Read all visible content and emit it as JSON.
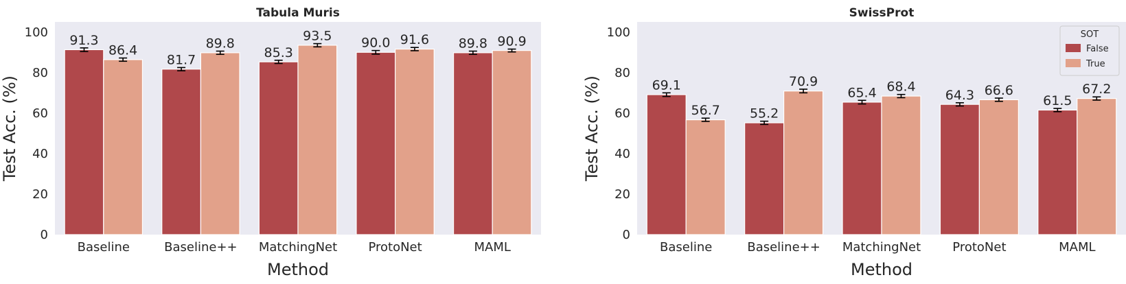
{
  "chart_data": [
    {
      "type": "bar",
      "title": "Tabula Muris",
      "xlabel": "Method",
      "ylabel": "Test Acc. (%)",
      "ylim": [
        0,
        105
      ],
      "yticks": [
        0,
        20,
        40,
        60,
        80,
        100
      ],
      "grid": false,
      "categories": [
        "Baseline",
        "Baseline++",
        "MatchingNet",
        "ProtoNet",
        "MAML"
      ],
      "series": [
        {
          "name": "False",
          "values": [
            91.3,
            81.7,
            85.3,
            90.0,
            89.8
          ],
          "labels": [
            "91.3",
            "81.7",
            "85.3",
            "90.0",
            "89.8"
          ],
          "errors": [
            0.9,
            0.8,
            0.8,
            0.9,
            0.8
          ]
        },
        {
          "name": "True",
          "values": [
            86.4,
            89.8,
            93.5,
            91.6,
            90.9
          ],
          "labels": [
            "86.4",
            "89.8",
            "93.5",
            "91.6",
            "90.9"
          ],
          "errors": [
            0.8,
            0.8,
            0.8,
            0.8,
            0.7
          ]
        }
      ],
      "legend": null
    },
    {
      "type": "bar",
      "title": "SwissProt",
      "xlabel": "Method",
      "ylabel": "Test Acc. (%)",
      "ylim": [
        0,
        105
      ],
      "yticks": [
        0,
        20,
        40,
        60,
        80,
        100
      ],
      "grid": false,
      "categories": [
        "Baseline",
        "Baseline++",
        "MatchingNet",
        "ProtoNet",
        "MAML"
      ],
      "series": [
        {
          "name": "False",
          "values": [
            69.1,
            55.2,
            65.4,
            64.3,
            61.5
          ],
          "labels": [
            "69.1",
            "55.2",
            "65.4",
            "64.3",
            "61.5"
          ],
          "errors": [
            0.9,
            0.8,
            0.9,
            0.8,
            0.8
          ]
        },
        {
          "name": "True",
          "values": [
            56.7,
            70.9,
            68.4,
            66.6,
            67.2
          ],
          "labels": [
            "56.7",
            "70.9",
            "68.4",
            "66.6",
            "67.2"
          ],
          "errors": [
            0.8,
            0.9,
            0.8,
            0.8,
            0.8
          ]
        }
      ],
      "legend": {
        "title": "SOT",
        "placement": "top-right"
      }
    }
  ],
  "colors": {
    "series": [
      "#b0484b",
      "#e2a18a"
    ],
    "plot_bg": "#eaeaf2",
    "text": "#262626",
    "error_bar": "#000000"
  }
}
